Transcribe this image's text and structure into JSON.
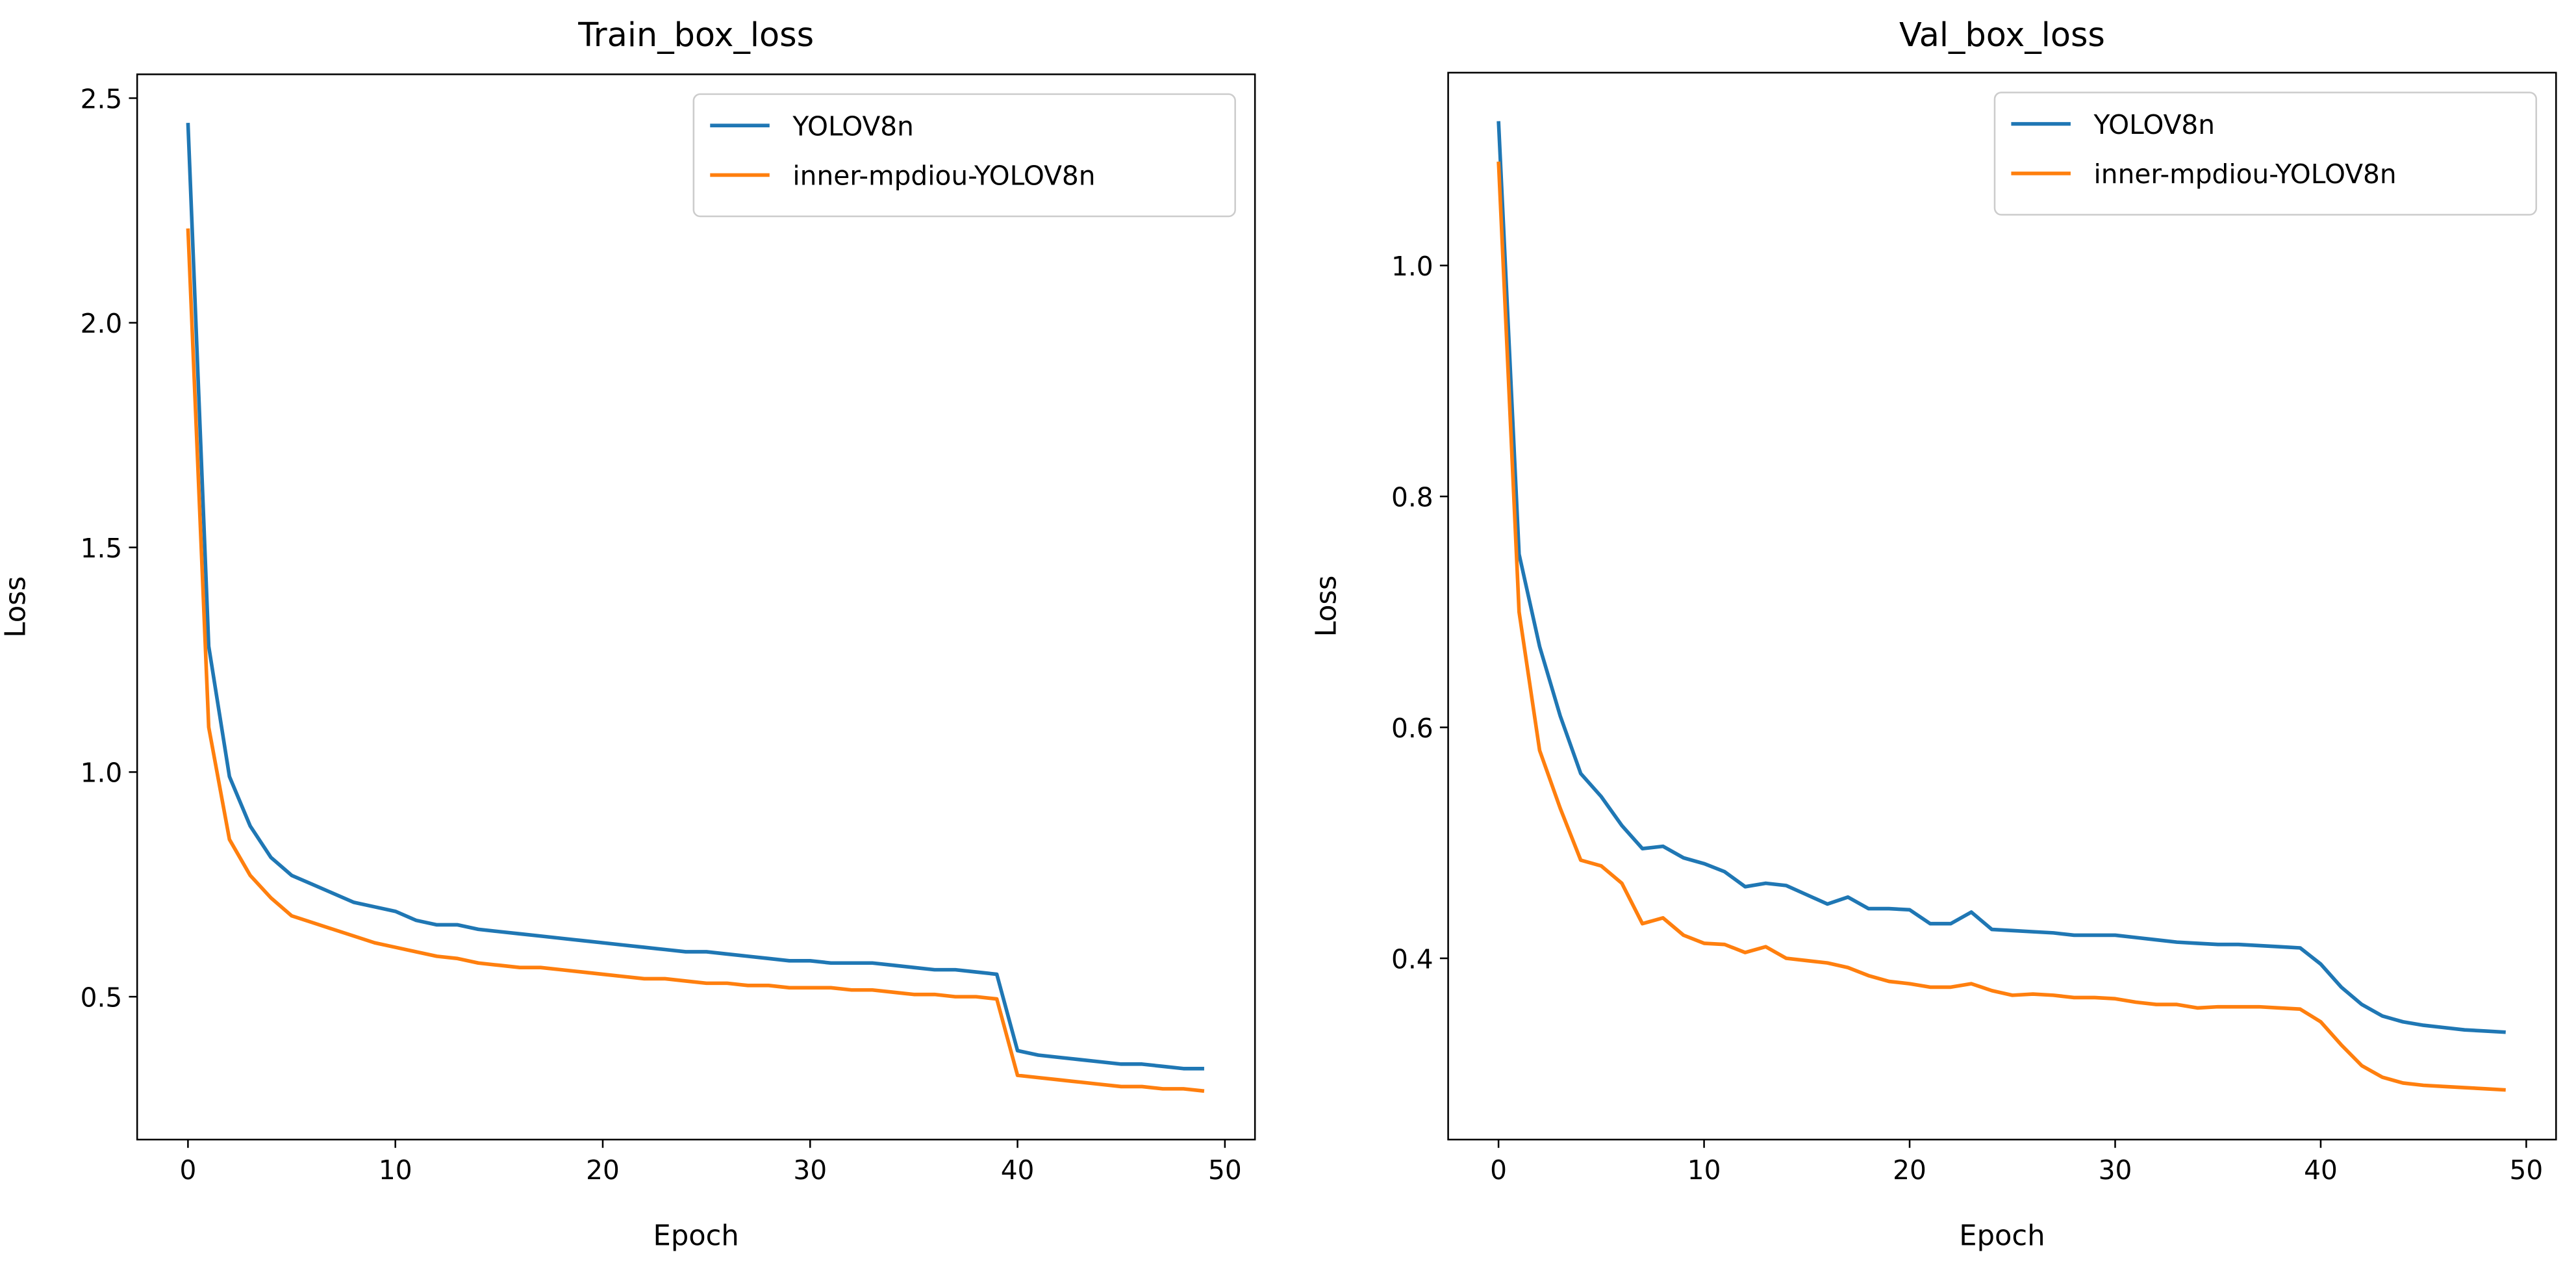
{
  "chart_data": [
    {
      "type": "line",
      "title": "Train_box_loss",
      "xlabel": "Epoch",
      "ylabel": "Loss",
      "x": [
        0,
        1,
        2,
        3,
        4,
        5,
        6,
        7,
        8,
        9,
        10,
        11,
        12,
        13,
        14,
        15,
        16,
        17,
        18,
        19,
        20,
        21,
        22,
        23,
        24,
        25,
        26,
        27,
        28,
        29,
        30,
        31,
        32,
        33,
        34,
        35,
        36,
        37,
        38,
        39,
        40,
        41,
        42,
        43,
        44,
        45,
        46,
        47,
        48,
        49
      ],
      "series": [
        {
          "name": "YOLOV8n",
          "color": "#1f77b4",
          "values": [
            2.445,
            1.28,
            0.99,
            0.88,
            0.81,
            0.77,
            0.75,
            0.73,
            0.71,
            0.7,
            0.69,
            0.67,
            0.66,
            0.66,
            0.65,
            0.645,
            0.64,
            0.635,
            0.63,
            0.625,
            0.62,
            0.615,
            0.61,
            0.605,
            0.6,
            0.6,
            0.595,
            0.59,
            0.585,
            0.58,
            0.58,
            0.575,
            0.575,
            0.575,
            0.57,
            0.565,
            0.56,
            0.56,
            0.555,
            0.55,
            0.38,
            0.37,
            0.365,
            0.36,
            0.355,
            0.35,
            0.35,
            0.345,
            0.34,
            0.34
          ]
        },
        {
          "name": "inner-mpdiou-YOLOV8n",
          "color": "#ff7f0e",
          "values": [
            2.21,
            1.1,
            0.85,
            0.77,
            0.72,
            0.68,
            0.665,
            0.65,
            0.635,
            0.62,
            0.61,
            0.6,
            0.59,
            0.585,
            0.575,
            0.57,
            0.565,
            0.565,
            0.56,
            0.555,
            0.55,
            0.545,
            0.54,
            0.54,
            0.535,
            0.53,
            0.53,
            0.525,
            0.525,
            0.52,
            0.52,
            0.52,
            0.515,
            0.515,
            0.51,
            0.505,
            0.505,
            0.5,
            0.5,
            0.495,
            0.325,
            0.32,
            0.315,
            0.31,
            0.305,
            0.3,
            0.3,
            0.295,
            0.295,
            0.29
          ]
        }
      ],
      "xlim": [
        -2.45,
        51.45
      ],
      "xticks": [
        0,
        10,
        20,
        30,
        40,
        50
      ],
      "ylim": [
        0.182,
        2.553
      ],
      "yticks": [
        0.5,
        {
          "value": 1,
          "label": "1.0"
        },
        1.5,
        {
          "value": 2,
          "label": "2.0"
        },
        2.5
      ],
      "legend": "upper right"
    },
    {
      "type": "line",
      "title": "Val_box_loss",
      "xlabel": "Epoch",
      "ylabel": "Loss",
      "x": [
        0,
        1,
        2,
        3,
        4,
        5,
        6,
        7,
        8,
        9,
        10,
        11,
        12,
        13,
        14,
        15,
        16,
        17,
        18,
        19,
        20,
        21,
        22,
        23,
        24,
        25,
        26,
        27,
        28,
        29,
        30,
        31,
        32,
        33,
        34,
        35,
        36,
        37,
        38,
        39,
        40,
        41,
        42,
        43,
        44,
        45,
        46,
        47,
        48,
        49
      ],
      "series": [
        {
          "name": "YOLOV8n",
          "color": "#1f77b4",
          "values": [
            1.125,
            0.75,
            0.67,
            0.61,
            0.56,
            0.54,
            0.515,
            0.495,
            0.497,
            0.487,
            0.482,
            0.475,
            0.462,
            0.465,
            0.463,
            0.455,
            0.447,
            0.453,
            0.443,
            0.443,
            0.442,
            0.43,
            0.43,
            0.44,
            0.425,
            0.424,
            0.423,
            0.422,
            0.42,
            0.42,
            0.42,
            0.418,
            0.416,
            0.414,
            0.413,
            0.412,
            0.412,
            0.411,
            0.41,
            0.409,
            0.395,
            0.375,
            0.36,
            0.35,
            0.345,
            0.342,
            0.34,
            0.338,
            0.337,
            0.336
          ]
        },
        {
          "name": "inner-mpdiou-YOLOV8n",
          "color": "#ff7f0e",
          "values": [
            1.09,
            0.7,
            0.58,
            0.53,
            0.485,
            0.48,
            0.465,
            0.43,
            0.435,
            0.42,
            0.413,
            0.412,
            0.405,
            0.41,
            0.4,
            0.398,
            0.396,
            0.392,
            0.385,
            0.38,
            0.378,
            0.375,
            0.375,
            0.378,
            0.372,
            0.368,
            0.369,
            0.368,
            0.366,
            0.366,
            0.365,
            0.362,
            0.36,
            0.36,
            0.357,
            0.358,
            0.358,
            0.358,
            0.357,
            0.356,
            0.345,
            0.325,
            0.307,
            0.297,
            0.292,
            0.29,
            0.289,
            0.288,
            0.287,
            0.286
          ]
        }
      ],
      "xlim": [
        -2.45,
        51.45
      ],
      "xticks": [
        0,
        10,
        20,
        30,
        40,
        50
      ],
      "ylim": [
        0.243,
        1.167
      ],
      "yticks": [
        0.4,
        0.6,
        0.8,
        {
          "value": 1,
          "label": "1.0"
        }
      ],
      "legend": "upper right"
    }
  ]
}
